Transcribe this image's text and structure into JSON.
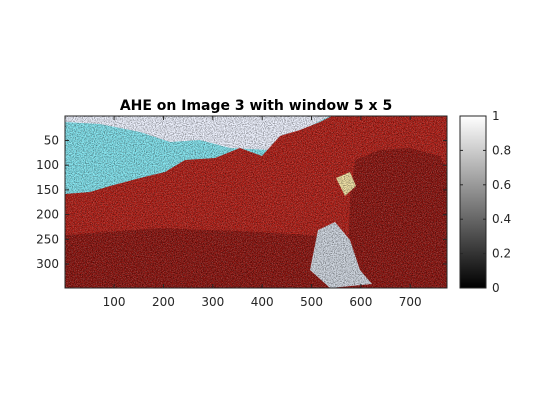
{
  "chart_data": {
    "type": "heatmap",
    "title": "AHE on Image 3 with window 5 x 5",
    "xlabel": "",
    "ylabel": "",
    "xlim": [
      0.5,
      774.5
    ],
    "ylim": [
      0.5,
      348.5
    ],
    "x_ticks": [
      100,
      200,
      300,
      400,
      500,
      600,
      700
    ],
    "y_ticks": [
      50,
      100,
      150,
      200,
      250,
      300
    ],
    "y_direction": "reverse",
    "grid": false,
    "colorbar": {
      "colormap": "gray",
      "limits": [
        0,
        1
      ],
      "ticks": [
        0,
        0.2,
        0.4,
        0.6,
        0.8,
        1
      ],
      "tick_labels": [
        "0",
        "0.2",
        "0.4",
        "0.6",
        "0.8",
        "1"
      ]
    },
    "image_colors": {
      "sky": "#7fe3ee",
      "cloud": "#eef2ff",
      "rock_dark": "#8a0f0a",
      "rock_mid": "#b01a12",
      "rock_light": "#d9a066",
      "highlight": "#f0e0a0",
      "snow": "#cfd6e0"
    }
  }
}
